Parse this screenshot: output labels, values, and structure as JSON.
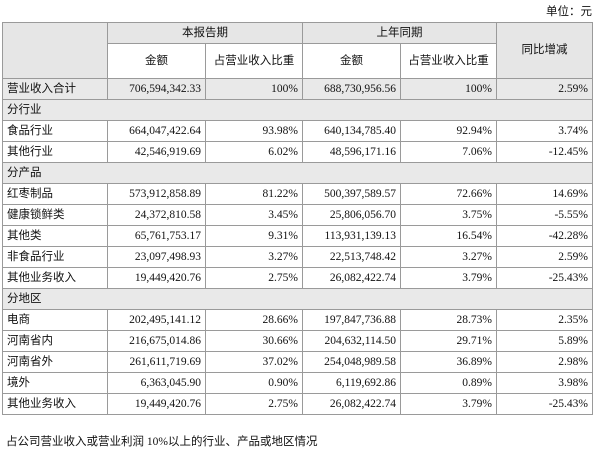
{
  "unit": "单位：元",
  "header": {
    "current": "本报告期",
    "previous": "上年同期",
    "yoy": "同比增减",
    "columns": [
      "金额",
      "占营业收入比重",
      "金额",
      "占营业收入比重"
    ]
  },
  "rows": [
    [
      "营业收入合计",
      "706,594,342.33",
      "100%",
      "688,730,956.56",
      "100%",
      "2.59%"
    ],
    [
      "分行业"
    ],
    [
      "食品行业",
      "664,047,422.64",
      "93.98%",
      "640,134,785.40",
      "92.94%",
      "3.74%"
    ],
    [
      "其他行业",
      "42,546,919.69",
      "6.02%",
      "48,596,171.16",
      "7.06%",
      "-12.45%"
    ],
    [
      "分产品"
    ],
    [
      "红枣制品",
      "573,912,858.89",
      "81.22%",
      "500,397,589.57",
      "72.66%",
      "14.69%"
    ],
    [
      "健康锁鲜类",
      "24,372,810.58",
      "3.45%",
      "25,806,056.70",
      "3.75%",
      "-5.55%"
    ],
    [
      "其他类",
      "65,761,753.17",
      "9.31%",
      "113,931,139.13",
      "16.54%",
      "-42.28%"
    ],
    [
      "非食品行业",
      "23,097,498.93",
      "3.27%",
      "22,513,748.42",
      "3.27%",
      "2.59%"
    ],
    [
      "其他业务收入",
      "19,449,420.76",
      "2.75%",
      "26,082,422.74",
      "3.79%",
      "-25.43%"
    ],
    [
      "分地区"
    ],
    [
      "电商",
      "202,495,141.12",
      "28.66%",
      "197,847,736.88",
      "28.73%",
      "2.35%"
    ],
    [
      "河南省内",
      "216,675,014.86",
      "30.66%",
      "204,632,114.50",
      "29.71%",
      "5.89%"
    ],
    [
      "河南省外",
      "261,611,719.69",
      "37.02%",
      "254,048,989.58",
      "36.89%",
      "2.98%"
    ],
    [
      "境外",
      "6,363,045.90",
      "0.90%",
      "6,119,692.86",
      "0.89%",
      "3.98%"
    ],
    [
      "其他业务收入",
      "19,449,420.76",
      "2.75%",
      "26,082,422.74",
      "3.79%",
      "-25.43%"
    ]
  ],
  "footnote": "占公司营业收入或营业利润 10%以上的行业、产品或地区情况"
}
